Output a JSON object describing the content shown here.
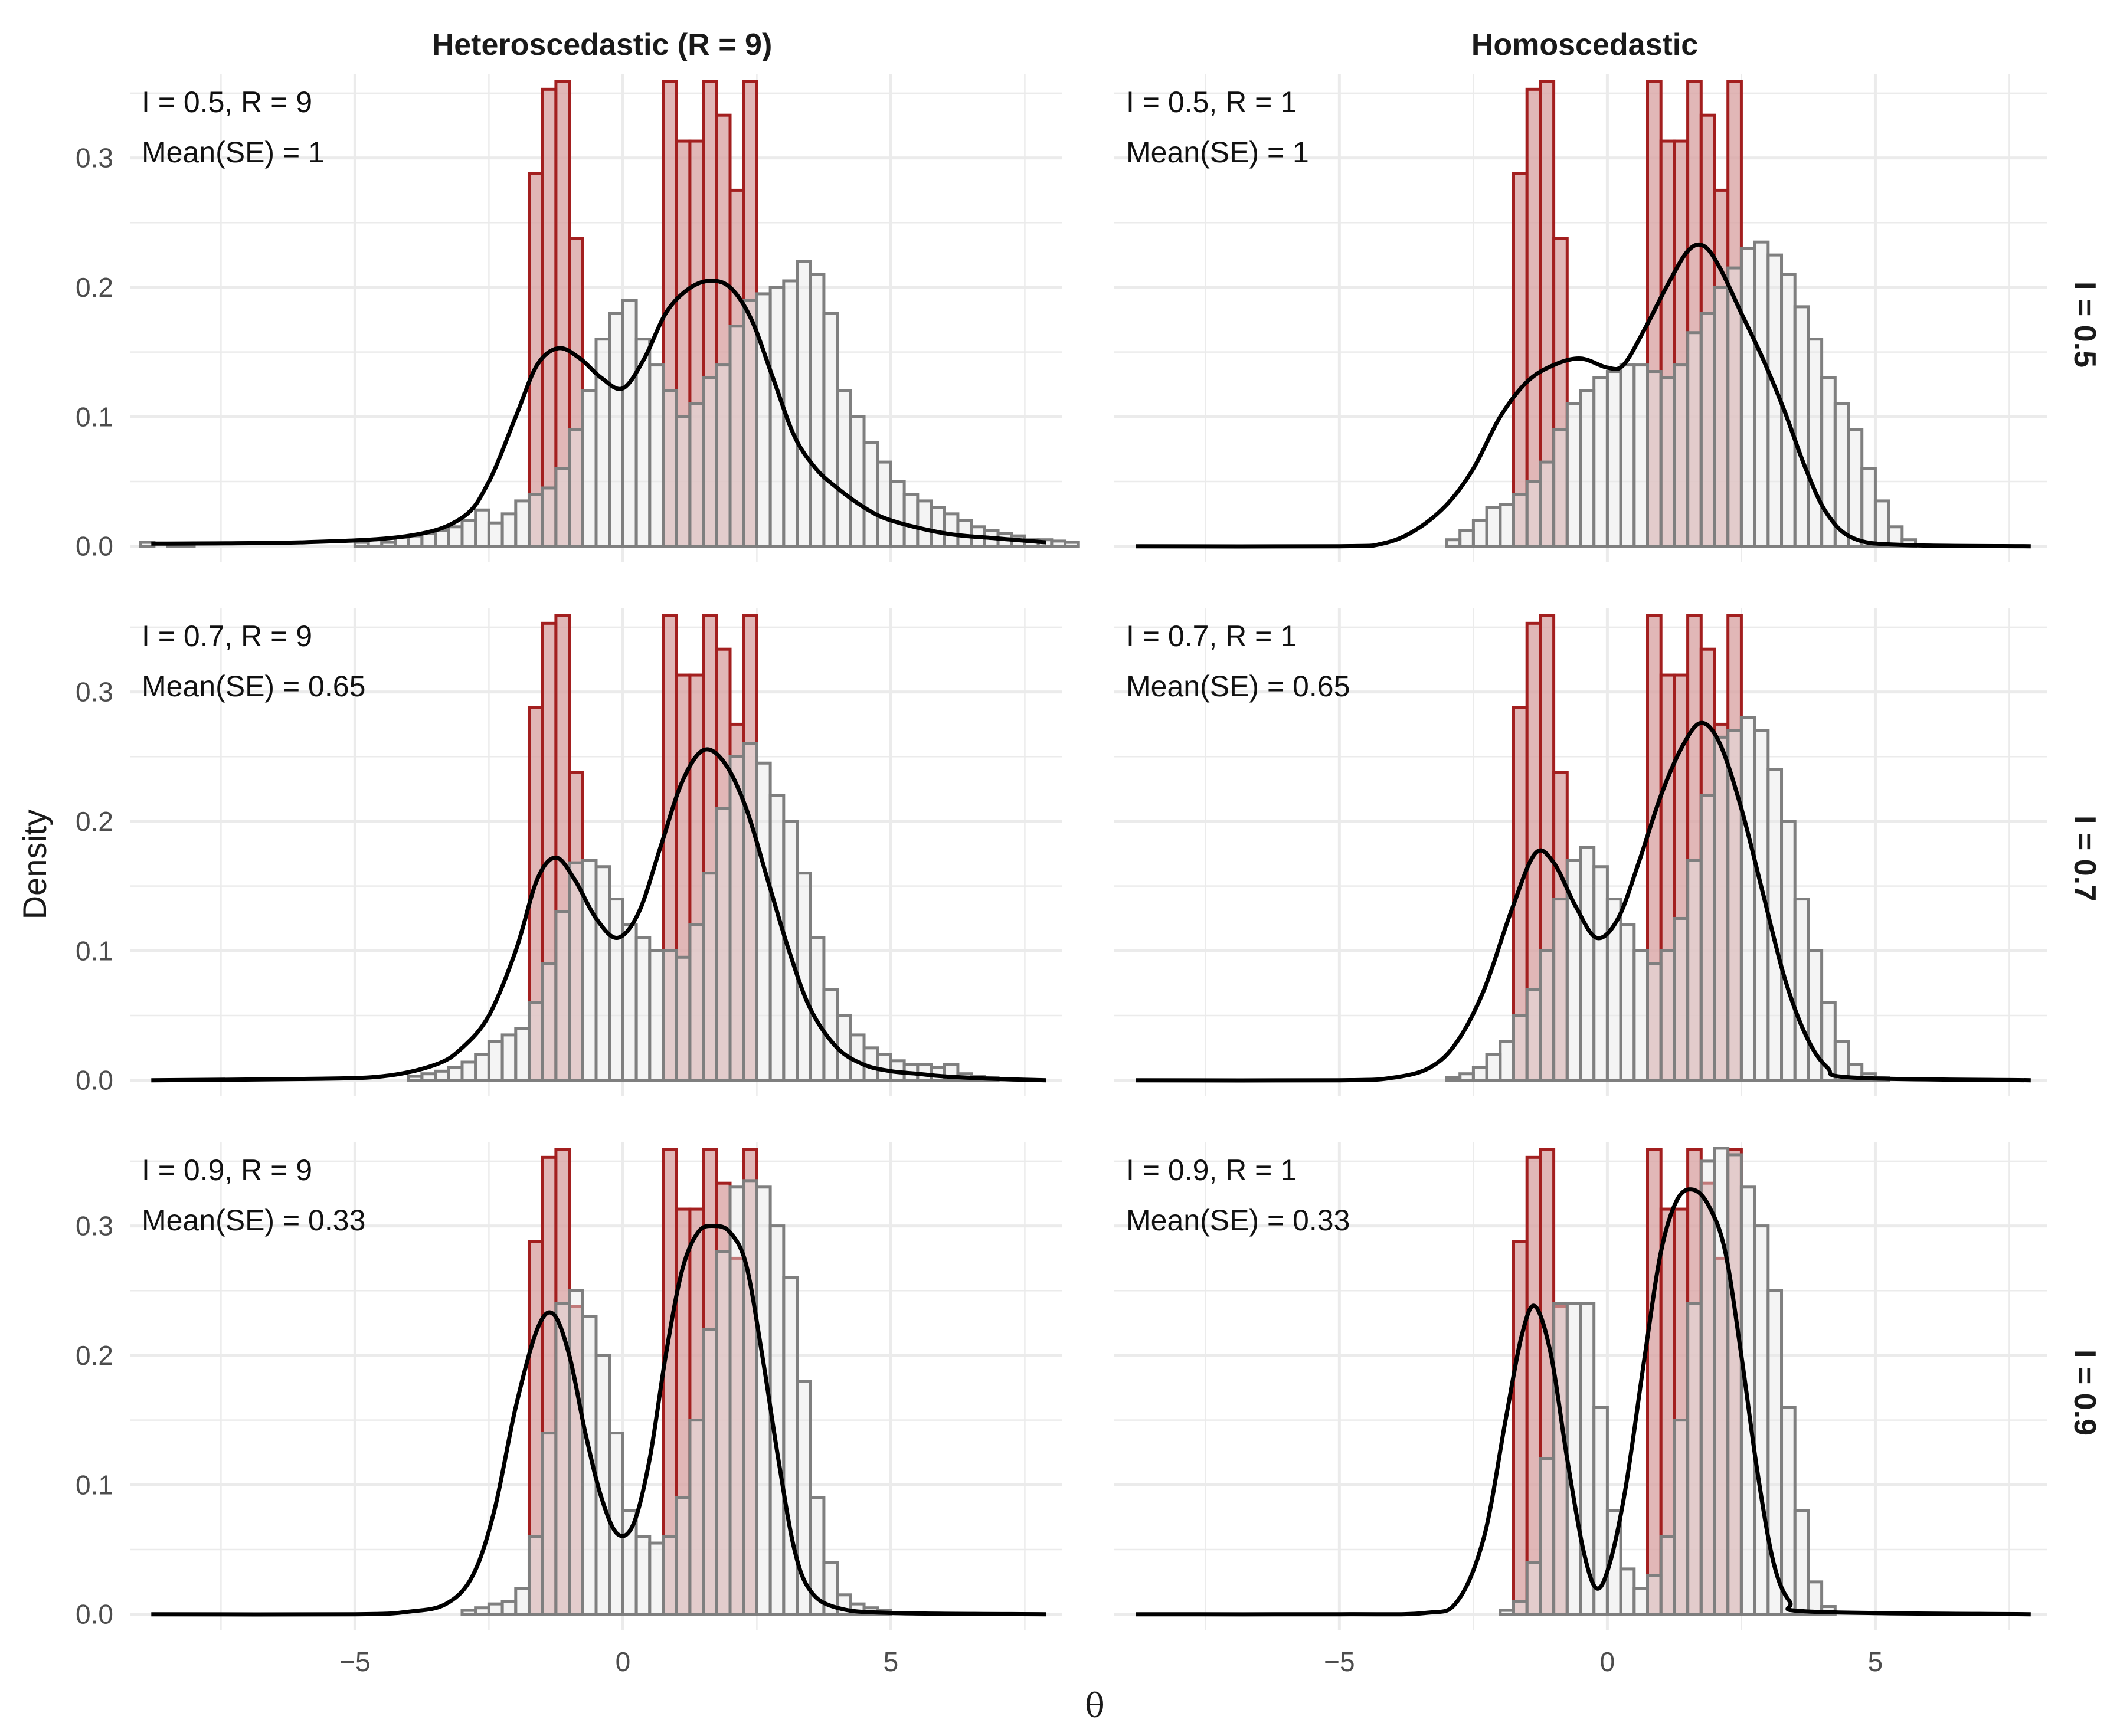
{
  "chart_data": {
    "type": "histogram-density-facets",
    "ylabel": "Density",
    "xlabel": "θ",
    "xlim": [
      -9.2,
      8.2
    ],
    "ylim": [
      -0.012,
      0.365
    ],
    "x_ticks": [
      -5,
      0,
      5
    ],
    "x_tick_labels": [
      "−5",
      "0",
      "5"
    ],
    "y_ticks": [
      0.0,
      0.1,
      0.2,
      0.3
    ],
    "y_tick_labels": [
      "0.0",
      "0.1",
      "0.2",
      "0.3"
    ],
    "bin_width": 0.25,
    "bin_start": -9.0,
    "colors": {
      "true_fill": "#d9a5a5",
      "true_stroke": "#a31f1f",
      "est_fill": "#e6e6e6",
      "est_stroke": "#7f7f7f",
      "density_line": "#000000",
      "grid": "#ebebeb"
    },
    "columns": [
      {
        "label": "Heteroscedastic (R = 9)"
      },
      {
        "label": "Homoscedastic"
      }
    ],
    "rows": [
      {
        "label": "I = 0.5"
      },
      {
        "label": "I = 0.7"
      },
      {
        "label": "I = 0.9"
      }
    ],
    "true_histogram": {
      "bins": [
        [
          -1.75,
          -1.5,
          0.288
        ],
        [
          -1.5,
          -1.25,
          0.353
        ],
        [
          -1.25,
          -1.0,
          0.359
        ],
        [
          -1.0,
          -0.75,
          0.238
        ],
        [
          0.75,
          1.0,
          0.359
        ],
        [
          1.0,
          1.25,
          0.313
        ],
        [
          1.25,
          1.5,
          0.313
        ],
        [
          1.5,
          1.75,
          0.359
        ],
        [
          1.75,
          2.0,
          0.333
        ],
        [
          2.0,
          2.25,
          0.275
        ],
        [
          2.25,
          2.5,
          0.359
        ]
      ]
    },
    "panels": [
      {
        "row": 0,
        "col": 0,
        "annotation": [
          "I = 0.5, R = 9",
          "Mean(SE) = 1"
        ],
        "estimate_histogram": [
          0.003,
          0,
          0.001,
          0.002,
          0,
          0,
          0,
          0,
          0,
          0,
          0,
          0,
          0,
          0,
          0,
          0,
          0.003,
          0.005,
          0.003,
          0.007,
          0.008,
          0.01,
          0.012,
          0.015,
          0.02,
          0.028,
          0.018,
          0.025,
          0.035,
          0.04,
          0.045,
          0.06,
          0.09,
          0.12,
          0.16,
          0.18,
          0.19,
          0.16,
          0.14,
          0.12,
          0.1,
          0.11,
          0.13,
          0.14,
          0.17,
          0.19,
          0.195,
          0.2,
          0.205,
          0.22,
          0.21,
          0.18,
          0.12,
          0.1,
          0.08,
          0.065,
          0.05,
          0.04,
          0.035,
          0.03,
          0.025,
          0.02,
          0.015,
          0.012,
          0.01,
          0.008,
          0.005,
          0.005,
          0.004,
          0.003
        ],
        "density_curve": [
          [
            -8.8,
            0.002
          ],
          [
            -6,
            0.003
          ],
          [
            -4,
            0.008
          ],
          [
            -3,
            0.022
          ],
          [
            -2.5,
            0.05
          ],
          [
            -2,
            0.1
          ],
          [
            -1.6,
            0.14
          ],
          [
            -1.2,
            0.153
          ],
          [
            -0.8,
            0.145
          ],
          [
            -0.4,
            0.13
          ],
          [
            0,
            0.122
          ],
          [
            0.4,
            0.145
          ],
          [
            0.8,
            0.18
          ],
          [
            1.2,
            0.198
          ],
          [
            1.6,
            0.205
          ],
          [
            2.0,
            0.2
          ],
          [
            2.4,
            0.175
          ],
          [
            2.8,
            0.13
          ],
          [
            3.2,
            0.085
          ],
          [
            3.6,
            0.06
          ],
          [
            4,
            0.045
          ],
          [
            4.5,
            0.03
          ],
          [
            5,
            0.02
          ],
          [
            6,
            0.01
          ],
          [
            7,
            0.006
          ],
          [
            7.9,
            0.003
          ]
        ]
      },
      {
        "row": 0,
        "col": 1,
        "annotation": [
          "I = 0.5, R = 1",
          "Mean(SE) = 1"
        ],
        "estimate_histogram": [
          0,
          0,
          0,
          0,
          0,
          0,
          0,
          0,
          0,
          0,
          0,
          0,
          0,
          0,
          0,
          0,
          0,
          0,
          0,
          0,
          0,
          0,
          0,
          0,
          0.005,
          0.012,
          0.02,
          0.03,
          0.032,
          0.04,
          0.05,
          0.065,
          0.09,
          0.11,
          0.12,
          0.13,
          0.135,
          0.14,
          0.14,
          0.135,
          0.13,
          0.14,
          0.165,
          0.18,
          0.2,
          0.215,
          0.23,
          0.235,
          0.225,
          0.21,
          0.185,
          0.16,
          0.13,
          0.11,
          0.09,
          0.06,
          0.035,
          0.015,
          0.005,
          0,
          0,
          0,
          0,
          0,
          0,
          0,
          0,
          0,
          0,
          0
        ],
        "density_curve": [
          [
            -8.8,
            0
          ],
          [
            -5,
            0
          ],
          [
            -4.2,
            0.002
          ],
          [
            -3.6,
            0.012
          ],
          [
            -3,
            0.032
          ],
          [
            -2.5,
            0.06
          ],
          [
            -2,
            0.1
          ],
          [
            -1.5,
            0.127
          ],
          [
            -1,
            0.14
          ],
          [
            -0.5,
            0.145
          ],
          [
            0,
            0.138
          ],
          [
            0.3,
            0.14
          ],
          [
            0.7,
            0.168
          ],
          [
            1.1,
            0.2
          ],
          [
            1.5,
            0.228
          ],
          [
            1.8,
            0.232
          ],
          [
            2.1,
            0.215
          ],
          [
            2.5,
            0.18
          ],
          [
            2.9,
            0.145
          ],
          [
            3.3,
            0.105
          ],
          [
            3.7,
            0.06
          ],
          [
            4.1,
            0.025
          ],
          [
            4.6,
            0.006
          ],
          [
            5.5,
            0.001
          ],
          [
            7.9,
            0
          ]
        ]
      },
      {
        "row": 1,
        "col": 0,
        "annotation": [
          "I = 0.7, R = 9",
          "Mean(SE) = 0.65"
        ],
        "estimate_histogram": [
          0,
          0,
          0,
          0,
          0,
          0,
          0,
          0,
          0,
          0,
          0,
          0,
          0,
          0,
          0,
          0,
          0,
          0,
          0,
          0,
          0.003,
          0.005,
          0.007,
          0.01,
          0.014,
          0.02,
          0.03,
          0.035,
          0.04,
          0.06,
          0.09,
          0.13,
          0.168,
          0.17,
          0.165,
          0.14,
          0.12,
          0.11,
          0.1,
          0.1,
          0.095,
          0.12,
          0.16,
          0.21,
          0.25,
          0.26,
          0.245,
          0.22,
          0.2,
          0.16,
          0.11,
          0.07,
          0.05,
          0.035,
          0.025,
          0.02,
          0.015,
          0.012,
          0.012,
          0.01,
          0.012,
          0.005,
          0.003,
          0.002,
          0,
          0,
          0,
          0,
          0,
          0
        ],
        "density_curve": [
          [
            -8.8,
            0
          ],
          [
            -6,
            0.001
          ],
          [
            -4.5,
            0.003
          ],
          [
            -3.5,
            0.012
          ],
          [
            -3,
            0.025
          ],
          [
            -2.5,
            0.05
          ],
          [
            -2,
            0.1
          ],
          [
            -1.6,
            0.155
          ],
          [
            -1.25,
            0.172
          ],
          [
            -0.9,
            0.155
          ],
          [
            -0.5,
            0.125
          ],
          [
            -0.1,
            0.11
          ],
          [
            0.3,
            0.13
          ],
          [
            0.7,
            0.18
          ],
          [
            1.1,
            0.23
          ],
          [
            1.5,
            0.255
          ],
          [
            1.9,
            0.245
          ],
          [
            2.3,
            0.21
          ],
          [
            2.7,
            0.155
          ],
          [
            3.1,
            0.1
          ],
          [
            3.5,
            0.055
          ],
          [
            4,
            0.025
          ],
          [
            4.5,
            0.012
          ],
          [
            5,
            0.007
          ],
          [
            5.5,
            0.005
          ],
          [
            6,
            0.003
          ],
          [
            7,
            0.001
          ],
          [
            7.9,
            0
          ]
        ]
      },
      {
        "row": 1,
        "col": 1,
        "annotation": [
          "I = 0.7, R = 1",
          "Mean(SE) = 0.65"
        ],
        "estimate_histogram": [
          0,
          0,
          0,
          0,
          0,
          0,
          0,
          0,
          0,
          0,
          0,
          0,
          0,
          0,
          0,
          0,
          0,
          0,
          0,
          0,
          0,
          0,
          0,
          0,
          0.002,
          0.005,
          0.01,
          0.02,
          0.03,
          0.05,
          0.07,
          0.1,
          0.14,
          0.17,
          0.18,
          0.165,
          0.14,
          0.12,
          0.1,
          0.09,
          0.1,
          0.125,
          0.17,
          0.22,
          0.265,
          0.27,
          0.28,
          0.27,
          0.24,
          0.2,
          0.14,
          0.1,
          0.06,
          0.03,
          0.012,
          0.005,
          0.002,
          0,
          0,
          0,
          0,
          0,
          0,
          0,
          0,
          0,
          0,
          0,
          0,
          0
        ],
        "density_curve": [
          [
            -8.8,
            0
          ],
          [
            -5,
            0
          ],
          [
            -4,
            0.002
          ],
          [
            -3.3,
            0.01
          ],
          [
            -2.8,
            0.03
          ],
          [
            -2.3,
            0.07
          ],
          [
            -1.8,
            0.13
          ],
          [
            -1.35,
            0.175
          ],
          [
            -1,
            0.168
          ],
          [
            -0.6,
            0.135
          ],
          [
            -0.2,
            0.11
          ],
          [
            0.2,
            0.125
          ],
          [
            0.6,
            0.17
          ],
          [
            1,
            0.22
          ],
          [
            1.4,
            0.258
          ],
          [
            1.75,
            0.276
          ],
          [
            2.1,
            0.26
          ],
          [
            2.5,
            0.21
          ],
          [
            2.9,
            0.145
          ],
          [
            3.3,
            0.08
          ],
          [
            3.7,
            0.035
          ],
          [
            4.1,
            0.01
          ],
          [
            4.6,
            0.002
          ],
          [
            7.9,
            0
          ]
        ]
      },
      {
        "row": 2,
        "col": 0,
        "annotation": [
          "I = 0.9, R = 9",
          "Mean(SE) = 0.33"
        ],
        "estimate_histogram": [
          0,
          0,
          0,
          0,
          0,
          0,
          0,
          0,
          0,
          0,
          0,
          0,
          0,
          0,
          0,
          0,
          0,
          0,
          0,
          0,
          0,
          0,
          0,
          0,
          0.003,
          0.005,
          0.008,
          0.01,
          0.02,
          0.06,
          0.14,
          0.24,
          0.25,
          0.23,
          0.2,
          0.14,
          0.08,
          0.06,
          0.055,
          0.06,
          0.09,
          0.15,
          0.22,
          0.28,
          0.33,
          0.335,
          0.33,
          0.3,
          0.26,
          0.18,
          0.09,
          0.04,
          0.015,
          0.008,
          0.005,
          0.003,
          0,
          0,
          0,
          0,
          0,
          0,
          0,
          0,
          0,
          0,
          0,
          0,
          0,
          0
        ],
        "density_curve": [
          [
            -8.8,
            0
          ],
          [
            -5,
            0
          ],
          [
            -4,
            0.002
          ],
          [
            -3.3,
            0.008
          ],
          [
            -2.8,
            0.03
          ],
          [
            -2.4,
            0.08
          ],
          [
            -2,
            0.16
          ],
          [
            -1.6,
            0.22
          ],
          [
            -1.3,
            0.232
          ],
          [
            -1,
            0.2
          ],
          [
            -0.7,
            0.14
          ],
          [
            -0.4,
            0.09
          ],
          [
            -0.1,
            0.062
          ],
          [
            0.2,
            0.07
          ],
          [
            0.5,
            0.12
          ],
          [
            0.8,
            0.2
          ],
          [
            1.1,
            0.265
          ],
          [
            1.4,
            0.295
          ],
          [
            1.7,
            0.3
          ],
          [
            2.0,
            0.295
          ],
          [
            2.3,
            0.27
          ],
          [
            2.6,
            0.2
          ],
          [
            2.9,
            0.12
          ],
          [
            3.2,
            0.05
          ],
          [
            3.5,
            0.018
          ],
          [
            4,
            0.005
          ],
          [
            5,
            0.001
          ],
          [
            7.9,
            0
          ]
        ]
      },
      {
        "row": 2,
        "col": 1,
        "annotation": [
          "I = 0.9, R = 1",
          "Mean(SE) = 0.33"
        ],
        "estimate_histogram": [
          0,
          0,
          0,
          0,
          0,
          0,
          0,
          0,
          0,
          0,
          0,
          0,
          0,
          0,
          0,
          0,
          0,
          0,
          0,
          0,
          0,
          0,
          0,
          0,
          0,
          0,
          0,
          0,
          0.003,
          0.01,
          0.04,
          0.12,
          0.24,
          0.24,
          0.24,
          0.16,
          0.08,
          0.035,
          0.02,
          0.03,
          0.06,
          0.15,
          0.24,
          0.35,
          0.36,
          0.355,
          0.33,
          0.3,
          0.25,
          0.16,
          0.08,
          0.025,
          0.006,
          0,
          0,
          0,
          0,
          0,
          0,
          0,
          0,
          0,
          0,
          0,
          0,
          0,
          0,
          0,
          0,
          0
        ],
        "density_curve": [
          [
            -8.8,
            0
          ],
          [
            -5,
            0
          ],
          [
            -3.4,
            0.001
          ],
          [
            -2.8,
            0.01
          ],
          [
            -2.3,
            0.06
          ],
          [
            -1.9,
            0.15
          ],
          [
            -1.6,
            0.215
          ],
          [
            -1.35,
            0.238
          ],
          [
            -1.05,
            0.2
          ],
          [
            -0.75,
            0.12
          ],
          [
            -0.45,
            0.05
          ],
          [
            -0.2,
            0.02
          ],
          [
            0.05,
            0.04
          ],
          [
            0.35,
            0.1
          ],
          [
            0.7,
            0.2
          ],
          [
            1.0,
            0.28
          ],
          [
            1.3,
            0.32
          ],
          [
            1.6,
            0.328
          ],
          [
            1.9,
            0.315
          ],
          [
            2.2,
            0.28
          ],
          [
            2.5,
            0.2
          ],
          [
            2.8,
            0.11
          ],
          [
            3.1,
            0.04
          ],
          [
            3.4,
            0.01
          ],
          [
            3.8,
            0.002
          ],
          [
            7.9,
            0
          ]
        ]
      }
    ]
  }
}
